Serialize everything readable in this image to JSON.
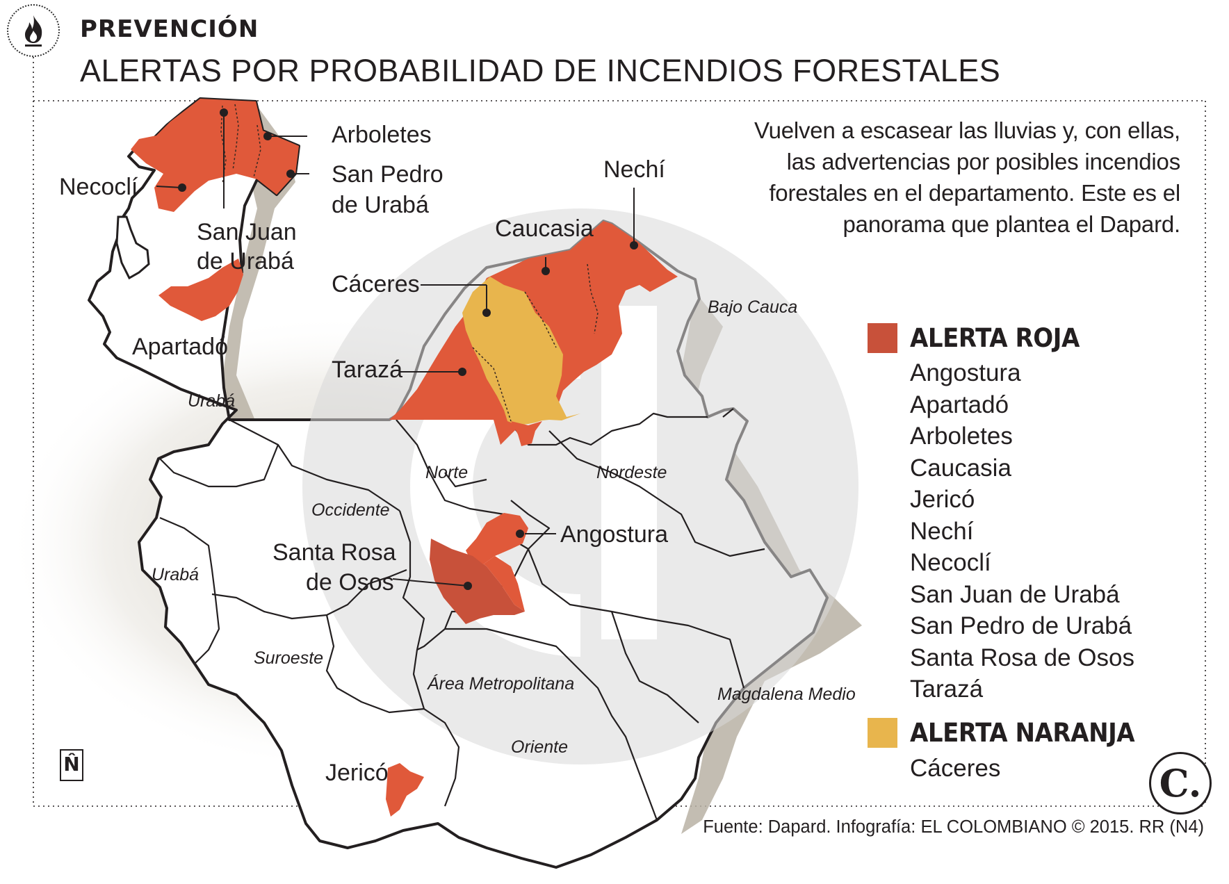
{
  "header": {
    "section": "PREVENCIÓN",
    "title": "ALERTAS POR PROBABILIDAD DE INCENDIOS FORESTALES",
    "icon": "fire-icon"
  },
  "intro": "Vuelven a escasear las lluvias y, con ellas, las advertencias por posibles incendios forestales en el departamento. Este es el panorama que plantea el Dapard.",
  "colors": {
    "alerta_roja": "#e0593a",
    "alerta_roja_dark": "#c34a33",
    "alerta_naranja": "#e8b54d",
    "land": "#ffffff",
    "watermark": "#d9d9d9",
    "shadow": "#b8b1a3"
  },
  "legend": [
    {
      "title": "ALERTA ROJA",
      "color": "#c8513a",
      "items": [
        "Angostura",
        "Apartadó",
        "Arboletes",
        "Caucasia",
        "Jericó",
        "Nechí",
        "Necoclí",
        "San Juan de Urabá",
        "San Pedro de Urabá",
        "Santa Rosa de Osos",
        "Tarazá"
      ]
    },
    {
      "title": "ALERTA NARANJA",
      "color": "#e8b54d",
      "items": [
        "Cáceres"
      ]
    }
  ],
  "map": {
    "municipalities": [
      {
        "name": "Arboletes",
        "lines": [
          "Arboletes"
        ],
        "alert": "roja"
      },
      {
        "name": "San Pedro de Urabá",
        "lines": [
          "San Pedro",
          "de Urabá"
        ],
        "alert": "roja"
      },
      {
        "name": "Necoclí",
        "lines": [
          "Necoclí"
        ],
        "alert": "roja"
      },
      {
        "name": "San Juan de Urabá",
        "lines": [
          "San Juan",
          "de Urabá"
        ],
        "alert": "roja"
      },
      {
        "name": "Apartadó",
        "lines": [
          "Apartadó"
        ],
        "alert": "roja"
      },
      {
        "name": "Nechí",
        "lines": [
          "Nechí"
        ],
        "alert": "roja"
      },
      {
        "name": "Caucasia",
        "lines": [
          "Caucasia"
        ],
        "alert": "roja"
      },
      {
        "name": "Cáceres",
        "lines": [
          "Cáceres"
        ],
        "alert": "naranja"
      },
      {
        "name": "Tarazá",
        "lines": [
          "Tarazá"
        ],
        "alert": "roja"
      },
      {
        "name": "Angostura",
        "lines": [
          "Angostura"
        ],
        "alert": "roja"
      },
      {
        "name": "Santa Rosa de Osos",
        "lines": [
          "Santa Rosa",
          "de Osos"
        ],
        "alert": "roja"
      },
      {
        "name": "Jericó",
        "lines": [
          "Jericó"
        ],
        "alert": "roja"
      }
    ],
    "subregions": [
      "Urabá",
      "Bajo Cauca",
      "Norte",
      "Nordeste",
      "Occidente",
      "Urabá",
      "Suroeste",
      "Área Metropolitana",
      "Magdalena Medio",
      "Oriente"
    ]
  },
  "north_symbol": "N̂",
  "source": "Fuente: Dapard. Infografía: EL COLOMBIANO © 2015. RR (N4)",
  "logo": "C."
}
